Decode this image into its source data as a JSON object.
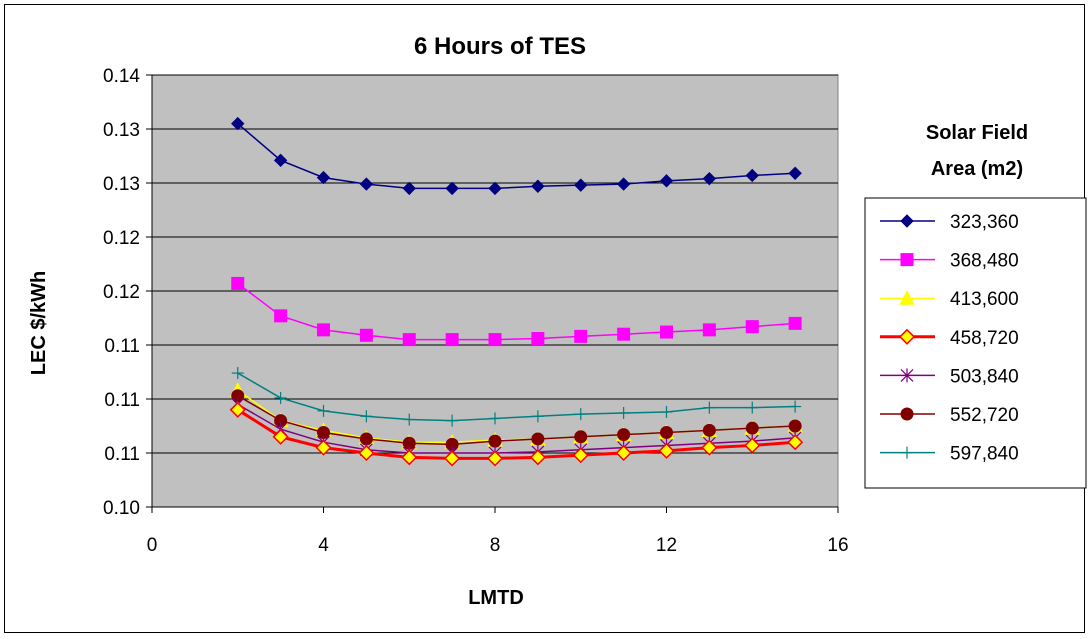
{
  "chart_data": {
    "type": "line",
    "title": "6 Hours of TES",
    "xlabel": "LMTD",
    "ylabel": "LEC $/kWh",
    "xlim": [
      0,
      16
    ],
    "ylim": [
      0.1,
      0.14
    ],
    "x_ticks": [
      0,
      4,
      8,
      12,
      16
    ],
    "y_tick_values": [
      0.1,
      0.105,
      0.11,
      0.115,
      0.12,
      0.125,
      0.13,
      0.135,
      0.14
    ],
    "y_tick_labels": [
      "0.10",
      "0.11",
      "0.11",
      "0.11",
      "0.12",
      "0.12",
      "0.13",
      "0.13",
      "0.14"
    ],
    "grid": "horizontal major gridlines",
    "legend_title": "Solar Field Area (m2)",
    "legend_title_lines": [
      "Solar Field",
      "Area (m2)"
    ],
    "legend_position": "right",
    "x": [
      2,
      3,
      4,
      5,
      6,
      7,
      8,
      9,
      10,
      11,
      12,
      13,
      14,
      15
    ],
    "series": [
      {
        "name": "323,360",
        "color": "#000080",
        "marker": "diamond",
        "values": [
          0.1355,
          0.1321,
          0.1305,
          0.1299,
          0.1295,
          0.1295,
          0.1295,
          0.1297,
          0.1298,
          0.1299,
          0.1302,
          0.1304,
          0.1307,
          0.1309
        ]
      },
      {
        "name": "368,480",
        "color": "#FF00FF",
        "marker": "square",
        "values": [
          0.1207,
          0.1177,
          0.1164,
          0.1159,
          0.1155,
          0.1155,
          0.1155,
          0.1156,
          0.1158,
          0.116,
          0.1162,
          0.1164,
          0.1167,
          0.117
        ]
      },
      {
        "name": "413,600",
        "color": "#FFFF00",
        "marker": "triangle",
        "values": [
          0.1108,
          0.108,
          0.1071,
          0.1064,
          0.106,
          0.106,
          0.1062,
          0.1063,
          0.1065,
          0.1067,
          0.1069,
          0.1071,
          0.1073,
          0.1075
        ]
      },
      {
        "name": "458,720",
        "color": "#FF0000",
        "marker": "diamond-yellow",
        "values": [
          0.109,
          0.1065,
          0.1055,
          0.105,
          0.1046,
          0.1045,
          0.1045,
          0.1046,
          0.1048,
          0.105,
          0.1052,
          0.1055,
          0.1057,
          0.106
        ]
      },
      {
        "name": "503,840",
        "color": "#800080",
        "marker": "asterisk",
        "values": [
          0.1095,
          0.1072,
          0.106,
          0.1053,
          0.105,
          0.105,
          0.105,
          0.1051,
          0.1053,
          0.1055,
          0.1057,
          0.1059,
          0.1061,
          0.1064
        ]
      },
      {
        "name": "552,720",
        "color": "#800000",
        "marker": "circle",
        "values": [
          0.1103,
          0.108,
          0.1069,
          0.1063,
          0.1059,
          0.1058,
          0.1061,
          0.1063,
          0.1065,
          0.1067,
          0.1069,
          0.1071,
          0.1073,
          0.1075
        ]
      },
      {
        "name": "597,840",
        "color": "#008080",
        "marker": "plus",
        "values": [
          0.1124,
          0.1101,
          0.1089,
          0.1084,
          0.1081,
          0.108,
          0.1082,
          0.1084,
          0.1086,
          0.1087,
          0.1088,
          0.1092,
          0.1092,
          0.1093
        ]
      }
    ]
  }
}
